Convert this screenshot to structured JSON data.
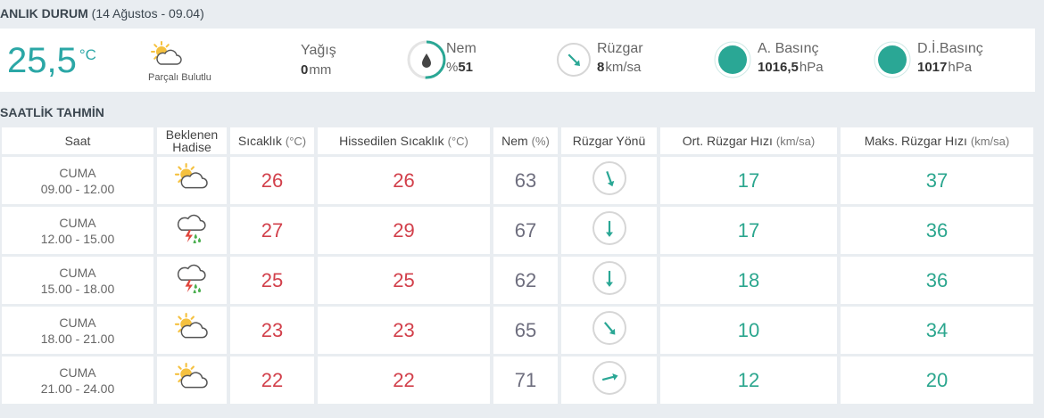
{
  "current": {
    "title": "ANLIK DURUM",
    "date": "(14 Ağustos - 09.04)",
    "temperature": "25,5",
    "temperature_unit": "°C",
    "condition": "Parçalı Bulutlu",
    "precipitation": {
      "label": "Yağış",
      "value": 0,
      "unit": "mm"
    },
    "humidity": {
      "label": "Nem",
      "prefix": "%",
      "value": 51
    },
    "wind": {
      "label": "Rüzgar",
      "value": 8,
      "unit": "km/sa"
    },
    "pressure": {
      "label": "A. Basınç",
      "value": "1016,5",
      "unit": "hPa"
    },
    "sea_pressure": {
      "label": "D.İ.Basınç",
      "value": 1017,
      "unit": "hPa"
    }
  },
  "forecast": {
    "title": "SAATLİK TAHMİN",
    "headers": [
      {
        "label": "Saat"
      },
      {
        "label": "Beklenen Hadise"
      },
      {
        "label": "Sıcaklık",
        "unit": "(°C)"
      },
      {
        "label": "Hissedilen Sıcaklık",
        "unit": "(°C)"
      },
      {
        "label": "Nem",
        "unit": "(%)"
      },
      {
        "label": "Rüzgar Yönü"
      },
      {
        "label": "Ort. Rüzgar Hızı",
        "unit": "(km/sa)"
      },
      {
        "label": "Maks. Rüzgar Hızı",
        "unit": "(km/sa)"
      }
    ],
    "rows": [
      {
        "day": "CUMA",
        "time": "09.00 - 12.00",
        "temperature": 26,
        "feels_like": 26,
        "humidity": 63,
        "wind_avg": 17,
        "wind_max": 37
      },
      {
        "day": "CUMA",
        "time": "12.00 - 15.00",
        "temperature": 27,
        "feels_like": 29,
        "humidity": 67,
        "wind_avg": 17,
        "wind_max": 36
      },
      {
        "day": "CUMA",
        "time": "15.00 - 18.00",
        "temperature": 25,
        "feels_like": 25,
        "humidity": 62,
        "wind_avg": 18,
        "wind_max": 36
      },
      {
        "day": "CUMA",
        "time": "18.00 - 21.00",
        "temperature": 23,
        "feels_like": 23,
        "humidity": 65,
        "wind_avg": 10,
        "wind_max": 34
      },
      {
        "day": "CUMA",
        "time": "21.00 - 24.00",
        "temperature": 22,
        "feels_like": 22,
        "humidity": 71,
        "wind_avg": 12,
        "wind_max": 20
      }
    ]
  }
}
